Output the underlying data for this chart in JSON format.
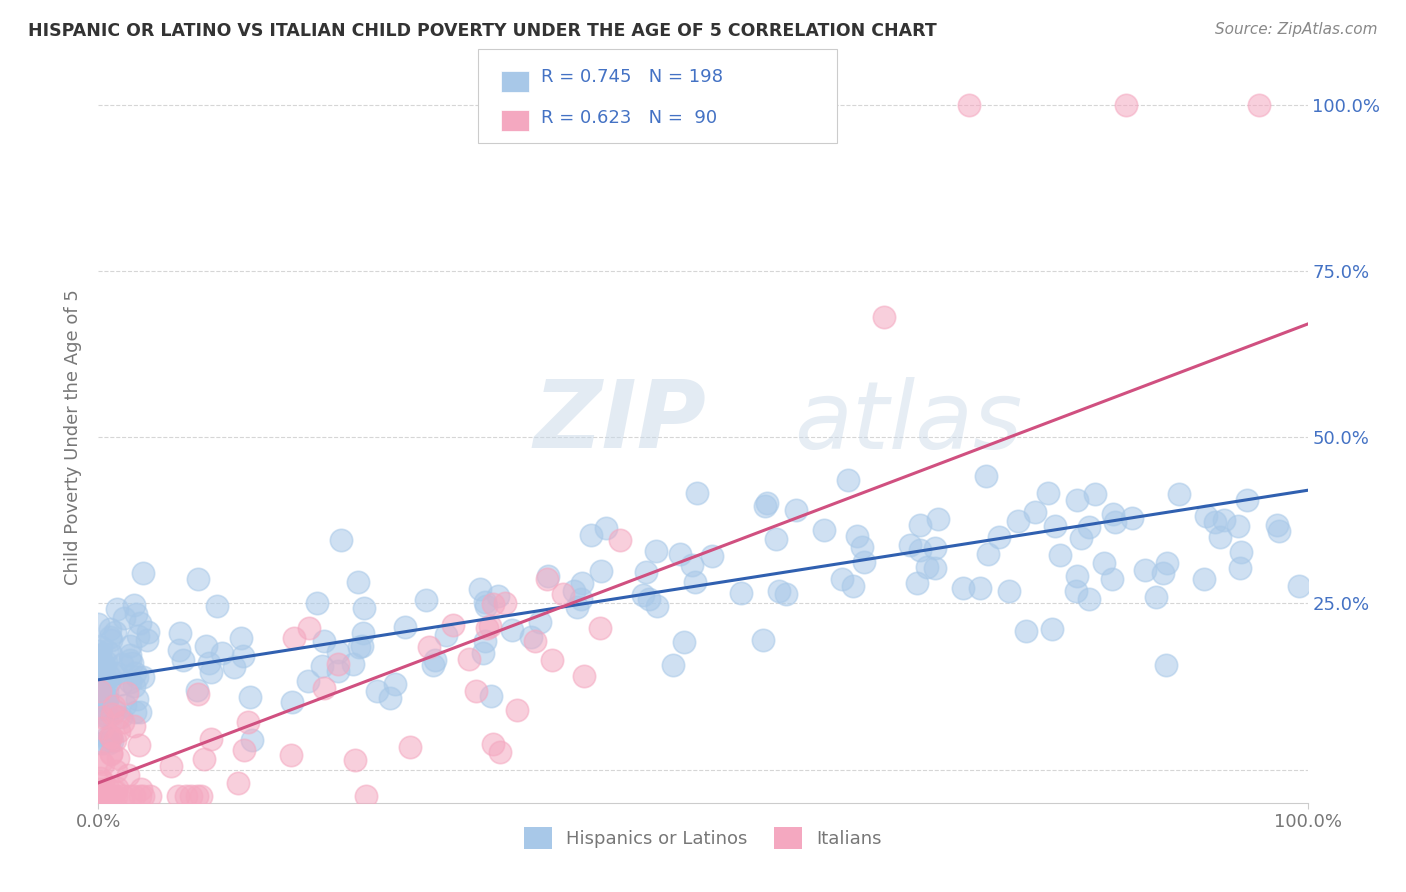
{
  "title": "HISPANIC OR LATINO VS ITALIAN CHILD POVERTY UNDER THE AGE OF 5 CORRELATION CHART",
  "source": "Source: ZipAtlas.com",
  "ylabel": "Child Poverty Under the Age of 5",
  "xlim": [
    0,
    1
  ],
  "ylim": [
    -0.05,
    1.05
  ],
  "blue_R": 0.745,
  "blue_N": 198,
  "pink_R": 0.623,
  "pink_N": 90,
  "blue_scatter_color": "#a8c8e8",
  "pink_scatter_color": "#f4a8c0",
  "blue_line_color": "#3060b0",
  "pink_line_color": "#d05080",
  "legend_label_blue": "Hispanics or Latinos",
  "legend_label_pink": "Italians",
  "background_color": "#ffffff",
  "grid_color": "#cccccc",
  "title_color": "#333333",
  "axis_label_color": "#4472c4",
  "tick_color": "#777777",
  "blue_line_intercept": 0.135,
  "blue_line_slope": 0.285,
  "pink_line_intercept": -0.02,
  "pink_line_slope": 0.69,
  "seed": 7
}
